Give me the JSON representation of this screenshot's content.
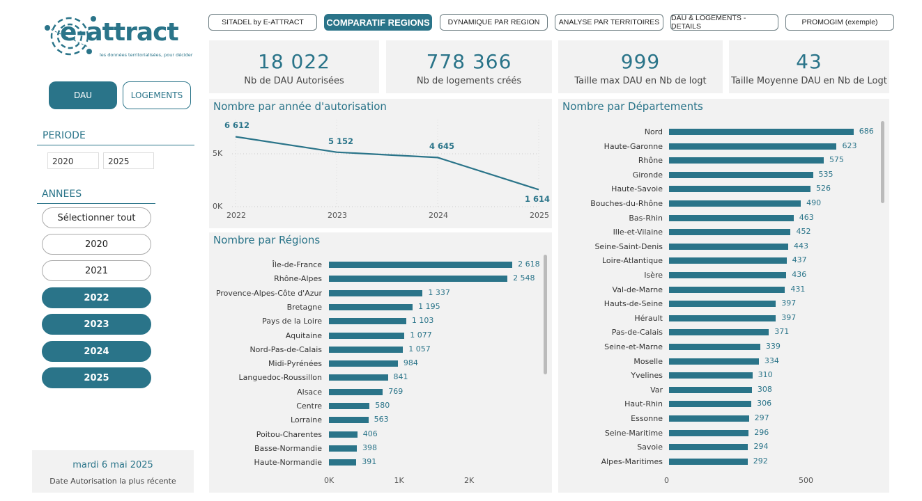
{
  "brand": {
    "name": "e-attract",
    "tagline": "les données territorialisées, pour décider"
  },
  "nav": [
    {
      "label": "SITADEL by E-ATTRACT",
      "active": false
    },
    {
      "label": "COMPARATIF REGIONS",
      "active": true
    },
    {
      "label": "DYNAMIQUE PAR REGION",
      "active": false
    },
    {
      "label": "ANALYSE PAR TERRITOIRES",
      "active": false
    },
    {
      "label": "DAU & LOGEMENTS - DETAILS",
      "active": false
    },
    {
      "label": "PROMOGIM (exemple)",
      "active": false
    }
  ],
  "toggle": {
    "dau": "DAU",
    "logements": "LOGEMENTS",
    "selected": "DAU"
  },
  "periode": {
    "title": "PERIODE",
    "start": "2020",
    "end": "2025"
  },
  "annees": {
    "title": "ANNEES",
    "items": [
      {
        "label": "Sélectionner tout",
        "selected": false
      },
      {
        "label": "2020",
        "selected": false
      },
      {
        "label": "2021",
        "selected": false
      },
      {
        "label": "2022",
        "selected": true
      },
      {
        "label": "2023",
        "selected": true
      },
      {
        "label": "2024",
        "selected": true
      },
      {
        "label": "2025",
        "selected": true
      }
    ]
  },
  "date_card": {
    "value": "mardi 6 mai 2025",
    "label": "Date Autorisation la plus récente"
  },
  "kpis": [
    {
      "value": "18 022",
      "label": "Nb de DAU Autorisées"
    },
    {
      "value": "778 366",
      "label": "Nb de logements créés"
    },
    {
      "value": "999",
      "label": "Taille max DAU en Nb de logt"
    },
    {
      "value": "43",
      "label": "Taille Moyenne DAU en Nb de Logt"
    }
  ],
  "colors": {
    "accent": "#2a7489",
    "panel": "#f2f2f2"
  },
  "chart_data": [
    {
      "type": "line",
      "title": "Nombre par année d'autorisation",
      "x": [
        "2022",
        "2023",
        "2024",
        "2025"
      ],
      "values": [
        6612,
        5152,
        4645,
        1614
      ],
      "data_labels": [
        "6 612",
        "5 152",
        "4 645",
        "1 614"
      ],
      "yticks": [
        "0K",
        "5K"
      ],
      "ylim": [
        0,
        7000
      ],
      "grid": true
    },
    {
      "type": "bar",
      "orientation": "horizontal",
      "title": "Nombre par Régions",
      "categories": [
        "Île-de-France",
        "Rhône-Alpes",
        "Provence-Alpes-Côte d'Azur",
        "Bretagne",
        "Pays de la Loire",
        "Aquitaine",
        "Nord-Pas-de-Calais",
        "Midi-Pyrénées",
        "Languedoc-Roussillon",
        "Alsace",
        "Centre",
        "Lorraine",
        "Poitou-Charentes",
        "Basse-Normandie",
        "Haute-Normandie"
      ],
      "values": [
        2618,
        2548,
        1337,
        1195,
        1103,
        1077,
        1057,
        984,
        841,
        769,
        580,
        563,
        406,
        398,
        391
      ],
      "data_labels": [
        "2 618",
        "2 548",
        "1 337",
        "1 195",
        "1 103",
        "1 077",
        "1 057",
        "984",
        "841",
        "769",
        "580",
        "563",
        "406",
        "398",
        "391"
      ],
      "xticks": [
        "0K",
        "1K",
        "2K"
      ],
      "xlim": [
        0,
        2600
      ]
    },
    {
      "type": "bar",
      "orientation": "horizontal",
      "title": "Nombre par Départements",
      "categories": [
        "Nord",
        "Haute-Garonne",
        "Rhône",
        "Gironde",
        "Haute-Savoie",
        "Bouches-du-Rhône",
        "Bas-Rhin",
        "Ille-et-Vilaine",
        "Seine-Saint-Denis",
        "Loire-Atlantique",
        "Isère",
        "Val-de-Marne",
        "Hauts-de-Seine",
        "Hérault",
        "Pas-de-Calais",
        "Seine-et-Marne",
        "Moselle",
        "Yvelines",
        "Var",
        "Haut-Rhin",
        "Essonne",
        "Seine-Maritime",
        "Savoie",
        "Alpes-Maritimes"
      ],
      "values": [
        686,
        623,
        575,
        535,
        526,
        490,
        463,
        452,
        443,
        437,
        436,
        431,
        397,
        397,
        371,
        339,
        334,
        310,
        308,
        306,
        297,
        296,
        294,
        292
      ],
      "xticks": [
        "0",
        "500"
      ],
      "xlim": [
        0,
        700
      ]
    }
  ]
}
